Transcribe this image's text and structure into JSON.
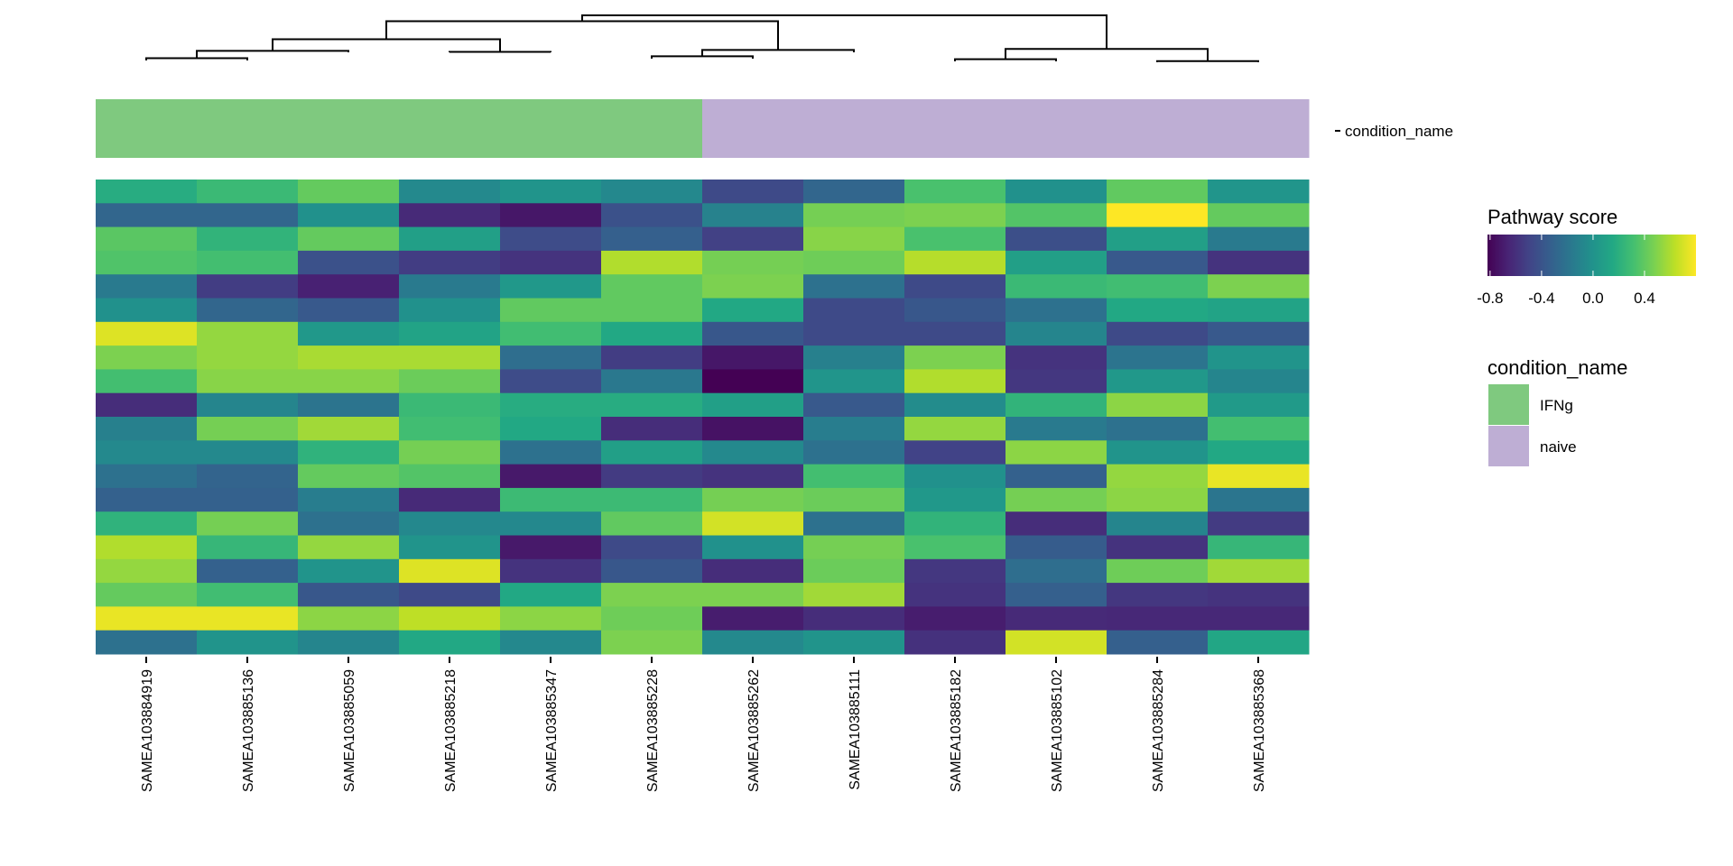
{
  "chart_data": {
    "type": "heatmap",
    "title": "",
    "xlabel": "",
    "ylabel": "",
    "columns": [
      "SAMEA103884919",
      "SAMEA103885136",
      "SAMEA103885059",
      "SAMEA103885218",
      "SAMEA103885347",
      "SAMEA103885228",
      "SAMEA103885262",
      "SAMEA103885111",
      "SAMEA103885182",
      "SAMEA103885102",
      "SAMEA103885284",
      "SAMEA103885368"
    ],
    "row_labels_shown": false,
    "values": [
      [
        0.18,
        0.27,
        0.41,
        -0.06,
        0.01,
        -0.07,
        -0.46,
        -0.29,
        0.33,
        -0.01,
        0.4,
        0.02
      ],
      [
        -0.29,
        -0.29,
        -0.01,
        -0.63,
        -0.72,
        -0.42,
        -0.11,
        0.46,
        0.48,
        0.36,
        0.8,
        0.41
      ],
      [
        0.38,
        0.23,
        0.41,
        0.09,
        -0.45,
        -0.33,
        -0.51,
        0.51,
        0.33,
        -0.43,
        0.09,
        -0.16
      ],
      [
        0.35,
        0.31,
        -0.42,
        -0.53,
        -0.58,
        0.61,
        0.46,
        0.44,
        0.62,
        0.09,
        -0.37,
        -0.58
      ],
      [
        -0.16,
        -0.53,
        -0.67,
        -0.16,
        0.04,
        0.4,
        0.48,
        -0.22,
        -0.46,
        0.27,
        0.3,
        0.48
      ],
      [
        -0.01,
        -0.29,
        -0.37,
        -0.01,
        0.4,
        0.4,
        0.15,
        -0.46,
        -0.38,
        -0.22,
        0.15,
        0.12
      ],
      [
        0.72,
        0.54,
        0.04,
        0.12,
        0.3,
        0.15,
        -0.38,
        -0.46,
        -0.46,
        -0.09,
        -0.46,
        -0.37
      ],
      [
        0.48,
        0.54,
        0.59,
        0.59,
        -0.24,
        -0.53,
        -0.72,
        -0.12,
        0.48,
        -0.58,
        -0.2,
        0.01
      ],
      [
        0.31,
        0.51,
        0.51,
        0.43,
        -0.45,
        -0.17,
        -0.82,
        0.02,
        0.61,
        -0.56,
        0.04,
        -0.09
      ],
      [
        -0.61,
        -0.09,
        -0.2,
        0.27,
        0.18,
        0.18,
        0.09,
        -0.37,
        -0.04,
        0.23,
        0.52,
        0.05
      ],
      [
        -0.12,
        0.46,
        0.57,
        0.3,
        0.15,
        -0.61,
        -0.74,
        -0.14,
        0.54,
        -0.16,
        -0.22,
        0.31
      ],
      [
        -0.06,
        -0.06,
        0.22,
        0.46,
        -0.22,
        0.09,
        -0.06,
        -0.22,
        -0.5,
        0.52,
        0.01,
        0.15
      ],
      [
        -0.22,
        -0.3,
        0.41,
        0.36,
        -0.71,
        -0.54,
        -0.58,
        0.31,
        -0.01,
        -0.32,
        0.54,
        0.75
      ],
      [
        -0.32,
        -0.32,
        -0.14,
        -0.63,
        0.28,
        0.28,
        0.46,
        0.43,
        0.04,
        0.46,
        0.52,
        -0.19
      ],
      [
        0.22,
        0.46,
        -0.22,
        -0.07,
        -0.07,
        0.4,
        0.69,
        -0.22,
        0.23,
        -0.61,
        -0.09,
        -0.54
      ],
      [
        0.61,
        0.25,
        0.54,
        0.01,
        -0.71,
        -0.46,
        -0.01,
        0.46,
        0.33,
        -0.35,
        -0.58,
        0.25
      ],
      [
        0.54,
        -0.32,
        0.01,
        0.72,
        -0.58,
        -0.38,
        -0.61,
        0.43,
        -0.56,
        -0.24,
        0.44,
        0.57
      ],
      [
        0.41,
        0.3,
        -0.38,
        -0.46,
        0.15,
        0.48,
        0.48,
        0.57,
        -0.58,
        -0.33,
        -0.56,
        -0.58
      ],
      [
        0.75,
        0.75,
        0.52,
        0.64,
        0.52,
        0.44,
        -0.69,
        -0.61,
        -0.69,
        -0.63,
        -0.64,
        -0.64
      ],
      [
        -0.22,
        0.01,
        -0.09,
        0.15,
        -0.07,
        0.48,
        -0.06,
        0.01,
        -0.59,
        0.69,
        -0.33,
        0.14
      ]
    ],
    "color_scale": {
      "name": "viridis",
      "title": "Pathway score",
      "range": [
        -0.82,
        0.8
      ],
      "ticks": [
        -0.8,
        -0.4,
        0.0,
        0.4
      ],
      "tick_labels": [
        "-0.8",
        "-0.4",
        "0.0",
        "0.4"
      ],
      "stops": [
        "#440154",
        "#482475",
        "#414487",
        "#355f8d",
        "#2a788e",
        "#21918c",
        "#22a884",
        "#44bf70",
        "#7ad151",
        "#bddf26",
        "#fde725"
      ]
    },
    "column_annotation": {
      "name": "condition_name",
      "values": [
        "IFNg",
        "IFNg",
        "IFNg",
        "IFNg",
        "IFNg",
        "IFNg",
        "naive",
        "naive",
        "naive",
        "naive",
        "naive",
        "naive"
      ],
      "legend_title": "condition_name",
      "levels": [
        {
          "label": "IFNg",
          "color": "#7fc97f"
        },
        {
          "label": "naive",
          "color": "#beaed4"
        }
      ]
    },
    "column_dendrogram": {
      "merges": [
        {
          "id": "A",
          "children": [
            0,
            1
          ],
          "height": 0.12
        },
        {
          "id": "B",
          "children": [
            "A",
            2
          ],
          "height": 0.27
        },
        {
          "id": "C",
          "children": [
            3,
            4
          ],
          "height": 0.25
        },
        {
          "id": "D",
          "children": [
            "B",
            "C"
          ],
          "height": 0.51
        },
        {
          "id": "E",
          "children": [
            5,
            6
          ],
          "height": 0.16
        },
        {
          "id": "F",
          "children": [
            "E",
            7
          ],
          "height": 0.29
        },
        {
          "id": "G",
          "children": [
            "D",
            "F"
          ],
          "height": 0.88
        },
        {
          "id": "H",
          "children": [
            8,
            9
          ],
          "height": 0.1
        },
        {
          "id": "I",
          "children": [
            10,
            11
          ],
          "height": 0.06
        },
        {
          "id": "J",
          "children": [
            "H",
            "I"
          ],
          "height": 0.31
        },
        {
          "id": "root",
          "children": [
            "G",
            "J"
          ],
          "height": 1.0
        }
      ]
    },
    "legend_placement": "right"
  }
}
